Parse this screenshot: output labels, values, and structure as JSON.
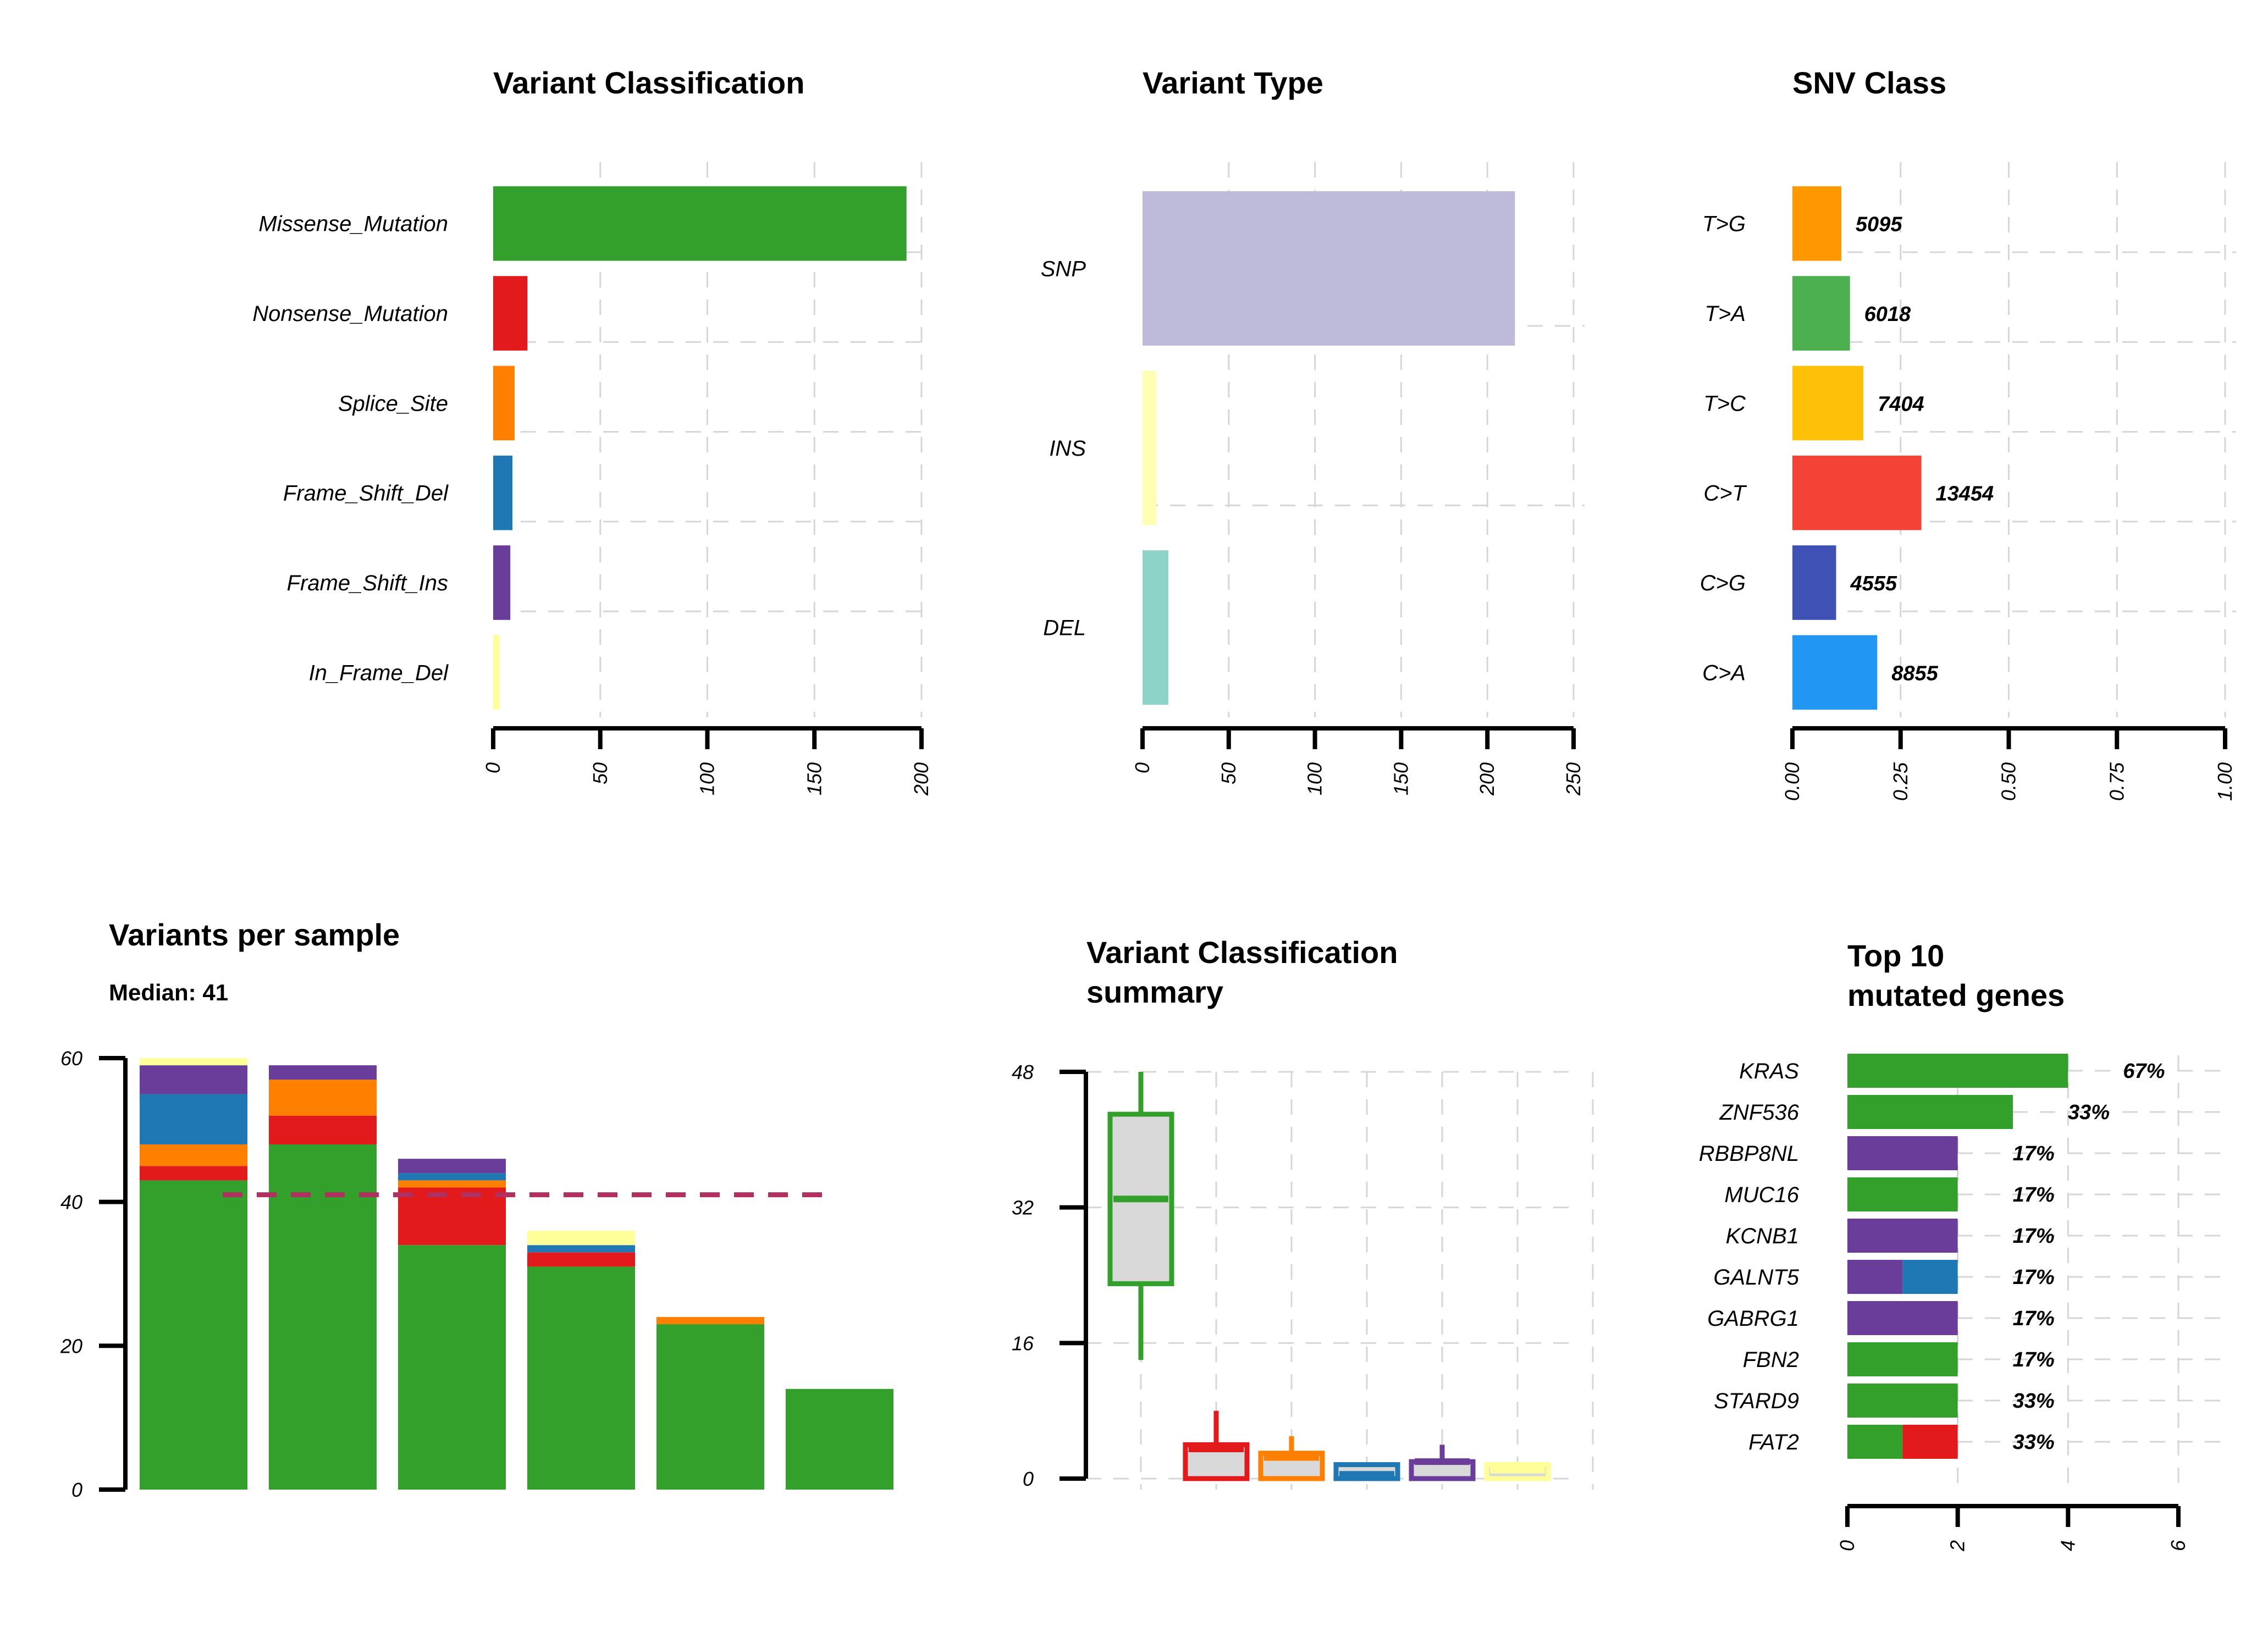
{
  "chart_data": [
    {
      "id": "variant_classification",
      "type": "bar",
      "orientation": "horizontal",
      "title": "Variant Classification",
      "categories": [
        "Missense_Mutation",
        "Nonsense_Mutation",
        "Splice_Site",
        "Frame_Shift_Del",
        "Frame_Shift_Ins",
        "In_Frame_Del"
      ],
      "values": [
        193,
        16,
        10,
        9,
        8,
        3
      ],
      "colors": [
        "#33a02c",
        "#e31a1c",
        "#ff7f00",
        "#1f78b4",
        "#6a3d9a",
        "#ffff99"
      ],
      "xlim": [
        0,
        200
      ],
      "xticks": [
        "0",
        "50",
        "100",
        "150",
        "200"
      ],
      "grid": true
    },
    {
      "id": "variant_type",
      "type": "bar",
      "orientation": "horizontal",
      "title": "Variant Type",
      "categories": [
        "SNP",
        "INS",
        "DEL"
      ],
      "values": [
        216,
        8,
        15
      ],
      "colors": [
        "#bebada",
        "#ffffb3",
        "#8dd3c7"
      ],
      "xlim": [
        0,
        250
      ],
      "xticks": [
        "0",
        "50",
        "100",
        "150",
        "200",
        "250"
      ],
      "grid": true
    },
    {
      "id": "snv_class",
      "type": "bar",
      "orientation": "horizontal",
      "title": "SNV Class",
      "categories": [
        "T>G",
        "T>A",
        "T>C",
        "C>T",
        "C>G",
        "C>A"
      ],
      "values": [
        0.113,
        0.133,
        0.164,
        0.298,
        0.101,
        0.196
      ],
      "labels": [
        "5095",
        "6018",
        "7404",
        "13454",
        "4555",
        "8855"
      ],
      "colors": [
        "#ff9800",
        "#4caf50",
        "#ffc107",
        "#f44336",
        "#3f51b5",
        "#2196f3"
      ],
      "xlim": [
        0,
        1
      ],
      "xticks": [
        "0.00",
        "0.25",
        "0.50",
        "0.75",
        "1.00"
      ],
      "grid": true
    },
    {
      "id": "variants_per_sample",
      "type": "bar",
      "stacked": true,
      "title": "Variants per sample",
      "subtitle": "Median: 41",
      "median": 41,
      "ylim": [
        0,
        60
      ],
      "yticks": [
        "0",
        "20",
        "40",
        "60"
      ],
      "stack_order": [
        "Missense_Mutation",
        "Nonsense_Mutation",
        "Splice_Site",
        "Frame_Shift_Del",
        "Frame_Shift_Ins",
        "In_Frame_Del"
      ],
      "colors": [
        "#33a02c",
        "#e31a1c",
        "#ff7f00",
        "#1f78b4",
        "#6a3d9a",
        "#ffff99"
      ],
      "samples": [
        [
          43,
          2,
          3,
          7,
          4,
          1
        ],
        [
          48,
          4,
          5,
          0,
          2,
          0
        ],
        [
          34,
          8,
          1,
          1,
          2,
          0
        ],
        [
          31,
          2,
          0,
          1,
          0,
          2
        ],
        [
          23,
          0,
          1,
          0,
          0,
          0
        ],
        [
          14,
          0,
          0,
          0,
          0,
          0
        ]
      ],
      "grid": false
    },
    {
      "id": "variant_classification_summary",
      "type": "boxplot",
      "title": "Variant Classification\nsummary",
      "ylim": [
        0,
        48
      ],
      "yticks": [
        "0",
        "16",
        "32",
        "48"
      ],
      "colors": [
        "#33a02c",
        "#e31a1c",
        "#ff7f00",
        "#1f78b4",
        "#6a3d9a",
        "#ffff99"
      ],
      "boxes": [
        {
          "min": 14,
          "q1": 23,
          "median": 33,
          "q3": 43,
          "max": 48
        },
        {
          "min": 0,
          "q1": 0,
          "median": 3.5,
          "q3": 4,
          "max": 8
        },
        {
          "min": 0,
          "q1": 0,
          "median": 2.5,
          "q3": 3,
          "max": 5
        },
        {
          "min": 0,
          "q1": 0,
          "median": 0.5,
          "q3": 1,
          "max": 1
        },
        {
          "min": 0,
          "q1": 0,
          "median": 2,
          "q3": 2,
          "max": 4
        },
        {
          "min": 0,
          "q1": 0,
          "median": 1,
          "q3": 1,
          "max": 2
        }
      ],
      "grid": true
    },
    {
      "id": "top10_genes",
      "type": "bar",
      "orientation": "horizontal",
      "stacked": true,
      "title": "Top 10\nmutated genes",
      "xlim": [
        0,
        6
      ],
      "xticks": [
        "0",
        "2",
        "4",
        "6"
      ],
      "genes": [
        "KRAS",
        "ZNF536",
        "RBBP8NL",
        "MUC16",
        "KCNB1",
        "GALNT5",
        "GABRG1",
        "FBN2",
        "STARD9",
        "FAT2"
      ],
      "percent": [
        "67%",
        "33%",
        "17%",
        "17%",
        "17%",
        "17%",
        "17%",
        "17%",
        "33%",
        "33%"
      ],
      "segments": [
        [
          {
            "value": 4,
            "color": "#33a02c"
          }
        ],
        [
          {
            "value": 3,
            "color": "#33a02c"
          }
        ],
        [
          {
            "value": 2,
            "color": "#6a3d9a"
          }
        ],
        [
          {
            "value": 2,
            "color": "#33a02c"
          }
        ],
        [
          {
            "value": 2,
            "color": "#6a3d9a"
          }
        ],
        [
          {
            "value": 1,
            "color": "#6a3d9a"
          },
          {
            "value": 1,
            "color": "#1f78b4"
          }
        ],
        [
          {
            "value": 2,
            "color": "#6a3d9a"
          }
        ],
        [
          {
            "value": 2,
            "color": "#33a02c"
          }
        ],
        [
          {
            "value": 2,
            "color": "#33a02c"
          }
        ],
        [
          {
            "value": 1,
            "color": "#33a02c"
          },
          {
            "value": 1,
            "color": "#e31a1c"
          }
        ]
      ],
      "grid": true
    }
  ]
}
